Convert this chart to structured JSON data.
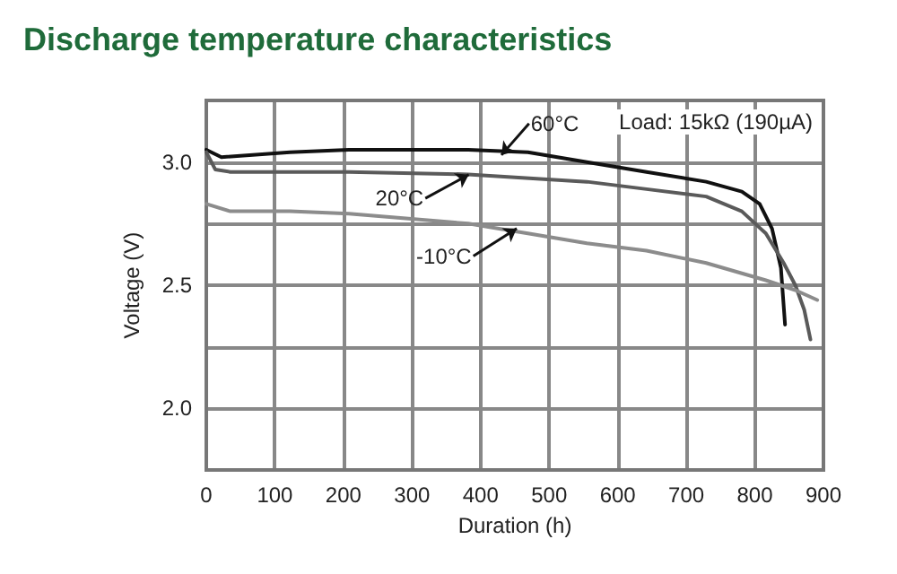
{
  "chart_data": {
    "type": "line",
    "title": "Discharge temperature characteristics",
    "xlabel": "Duration (h)",
    "ylabel": "Voltage (V)",
    "xlim": [
      0,
      900
    ],
    "xticks": [
      0,
      100,
      200,
      300,
      400,
      500,
      600,
      700,
      800,
      900
    ],
    "ylim": [
      1.75,
      3.25
    ],
    "yticks": [
      {
        "value": 2,
        "label": "2.0"
      },
      {
        "value": 2.25,
        "label": null
      },
      {
        "value": 2.5,
        "label": "2.5"
      },
      {
        "value": 2.75,
        "label": null
      },
      {
        "value": 3,
        "label": "3.0"
      }
    ],
    "grid": true,
    "marker": "none",
    "line_style": "solid",
    "series": [
      {
        "color": "#111111",
        "x": [
          0,
          22,
          122,
          208,
          382,
          469,
          555,
          642,
          729,
          781,
          807,
          825,
          838,
          844
        ],
        "values": [
          3.05,
          3.02,
          3.04,
          3.05,
          3.05,
          3.04,
          3.0,
          2.96,
          2.92,
          2.88,
          2.83,
          2.73,
          2.57,
          2.34
        ]
      },
      {
        "color": "#5a5a5a",
        "x": [
          0,
          13,
          35,
          208,
          382,
          555,
          642,
          729,
          781,
          816,
          842,
          859,
          872,
          881
        ],
        "values": [
          3.04,
          2.97,
          2.96,
          2.96,
          2.95,
          2.92,
          2.89,
          2.86,
          2.8,
          2.71,
          2.59,
          2.5,
          2.4,
          2.28
        ]
      },
      {
        "color": "#8c8c8c",
        "x": [
          0,
          35,
          122,
          208,
          295,
          382,
          469,
          555,
          642,
          729,
          816,
          859,
          891
        ],
        "values": [
          2.83,
          2.8,
          2.8,
          2.79,
          2.77,
          2.75,
          2.71,
          2.67,
          2.64,
          2.59,
          2.52,
          2.48,
          2.44
        ]
      }
    ],
    "annotations": [
      {
        "text": "60°C",
        "x": 434,
        "y": 3.04
      },
      {
        "text": "20°C",
        "x": 377,
        "y": 2.94
      },
      {
        "text": "-10°C",
        "x": 447,
        "y": 2.72
      },
      "Load: 15kΩ (190µA)"
    ]
  }
}
